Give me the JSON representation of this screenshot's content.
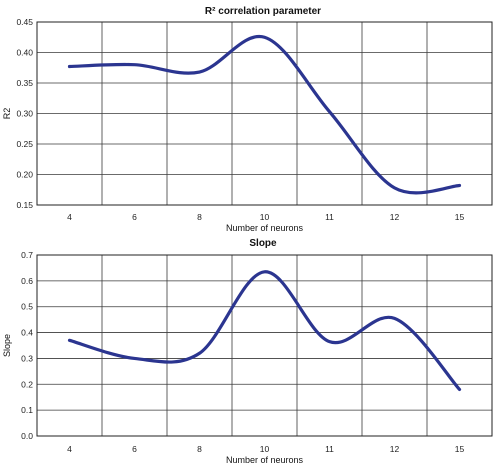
{
  "chart_data": [
    {
      "type": "line",
      "title": "R² correlation parameter",
      "xlabel": "Number of neurons",
      "ylabel": "R2",
      "categories": [
        "4",
        "6",
        "8",
        "10",
        "11",
        "12",
        "15"
      ],
      "yticks": [
        "0.15",
        "0.20",
        "0.25",
        "0.30",
        "0.35",
        "0.40",
        "0.45"
      ],
      "ylim": [
        0.15,
        0.45
      ],
      "grid": true,
      "smooth": true,
      "color": "#2b3590",
      "series": [
        {
          "values": [
            0.377,
            0.38,
            0.368,
            0.425,
            0.303,
            0.178,
            0.182
          ]
        }
      ]
    },
    {
      "type": "line",
      "title": "Slope",
      "xlabel": "Number of neurons",
      "ylabel": "Slope",
      "categories": [
        "4",
        "6",
        "8",
        "10",
        "11",
        "12",
        "15"
      ],
      "yticks": [
        "0.0",
        "0.1",
        "0.2",
        "0.3",
        "0.4",
        "0.5",
        "0.6",
        "0.7"
      ],
      "ylim": [
        0,
        0.7
      ],
      "grid": true,
      "smooth": true,
      "color": "#2b3590",
      "series": [
        {
          "values": [
            0.37,
            0.3,
            0.32,
            0.635,
            0.365,
            0.455,
            0.18
          ]
        }
      ]
    }
  ]
}
